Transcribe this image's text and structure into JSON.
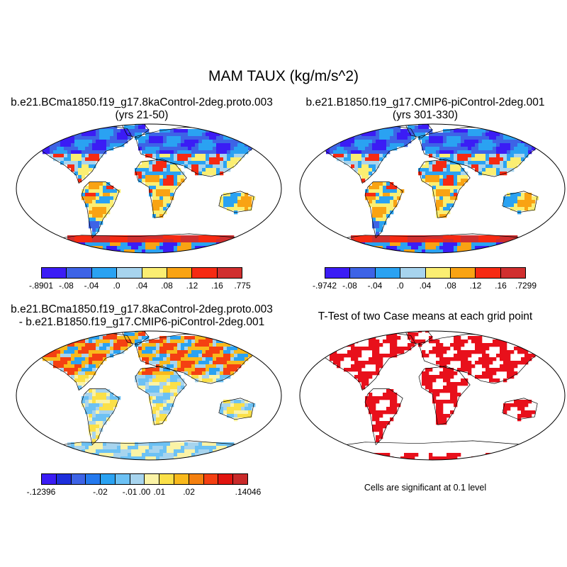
{
  "figure": {
    "title": "MAM TAUX (kg/m/s^2)"
  },
  "panels": [
    {
      "title_lines": [
        "b.e21.BCma1850.f19_g17.8kaControl-2deg.proto.003",
        "(yrs 21-50)"
      ],
      "colorbar": {
        "colors": [
          "#3b1cf5",
          "#3d63e6",
          "#2aa2f2",
          "#a7d4ee",
          "#fbee72",
          "#f9a313",
          "#f62a12",
          "#d02f2f"
        ],
        "labels": [
          "-.8901",
          "-.08",
          "-.04",
          ".0",
          ".04",
          ".08",
          ".12",
          ".16",
          ".775"
        ]
      }
    },
    {
      "title_lines": [
        "b.e21.B1850.f19_g17.CMIP6-piControl-2deg.001",
        "(yrs 301-330)"
      ],
      "colorbar": {
        "colors": [
          "#3b1cf5",
          "#3d63e6",
          "#2aa2f2",
          "#a7d4ee",
          "#fbee72",
          "#f9a313",
          "#f62a12",
          "#d02f2f"
        ],
        "labels": [
          "-.9742",
          "-.08",
          "-.04",
          ".0",
          ".04",
          ".08",
          ".12",
          ".16",
          ".7299"
        ]
      }
    },
    {
      "title_lines": [
        "b.e21.BCma1850.f19_g17.8kaControl-2deg.proto.003",
        "- b.e21.B1850.f19_g17.CMIP6-piControl-2deg.001"
      ],
      "colorbar": {
        "colors": [
          "#3b1cf5",
          "#1d2fdc",
          "#3d63e6",
          "#2479ee",
          "#2aa2f2",
          "#6cc1f4",
          "#a7d4ee",
          "#fbf3a6",
          "#fbe048",
          "#f9b91c",
          "#f4800f",
          "#f44012",
          "#e1140f",
          "#c92a2a"
        ],
        "labels": [
          "-.12396",
          "-.02",
          "-.01",
          ".00",
          ".01",
          ".02",
          ".14046"
        ]
      }
    },
    {
      "title_lines": [
        "T-Test of two Case means at each grid point"
      ],
      "note": "Cells are significant at 0.1 level",
      "significant_color": "#e8101b"
    }
  ]
}
